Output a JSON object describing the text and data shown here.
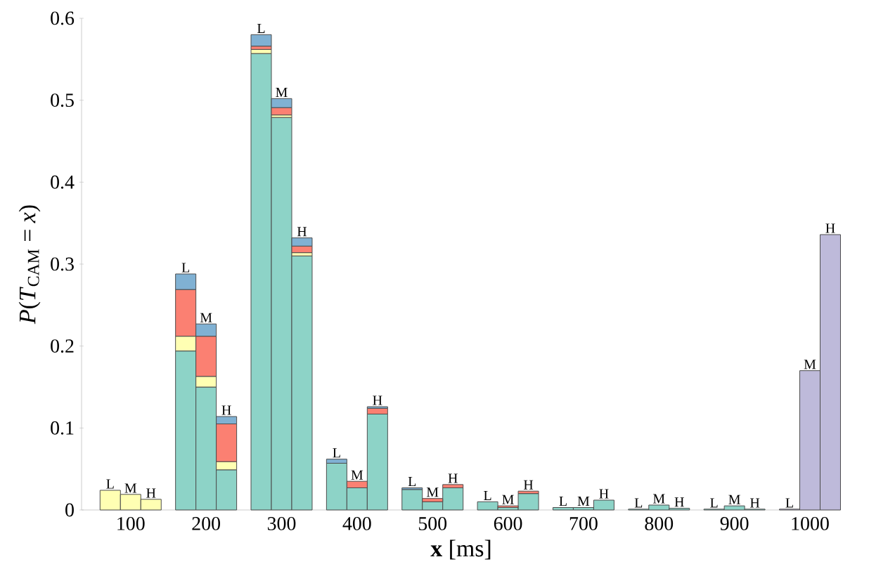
{
  "chart_data": {
    "type": "bar",
    "stacked": true,
    "xlabel": "**x** [ms]",
    "ylabel": "*P*(*T*$_{CAM}$ = *x*)",
    "x": [
      73,
      100,
      127,
      173,
      200,
      227,
      273,
      300,
      327,
      373,
      400,
      427,
      473,
      500,
      527,
      573,
      600,
      627,
      673,
      700,
      727,
      773,
      800,
      827,
      873,
      900,
      927,
      973,
      1000,
      1027
    ],
    "xlim": [
      35,
      1041
    ],
    "xticks": [
      100,
      200,
      300,
      400,
      500,
      600,
      700,
      800,
      900,
      1000
    ],
    "ylim": [
      0,
      0.6
    ],
    "yticks": [
      0,
      0.1,
      0.2,
      0.3,
      0.4,
      0.5,
      0.6
    ],
    "series": [
      {
        "color": "#8dd3c7",
        "values": [
          null,
          null,
          null,
          0.194,
          0.15,
          0.049,
          0.557,
          0.479,
          0.31,
          0.057,
          0.027,
          0.117,
          0.025,
          0.01,
          0.027,
          0.01,
          0.003,
          0.02,
          0.003,
          0.003,
          0.012,
          0.001,
          0.006,
          0.002,
          0.001,
          0.005,
          0.001,
          null,
          null,
          null
        ]
      },
      {
        "color": "#ffffb3",
        "values": [
          0.024,
          0.019,
          0.013,
          0.018,
          0.013,
          0.01,
          0.005,
          0.003,
          0.004,
          null,
          null,
          null,
          null,
          null,
          null,
          null,
          null,
          null,
          null,
          null,
          null,
          null,
          null,
          null,
          null,
          null,
          null,
          null,
          null,
          null
        ]
      },
      {
        "color": "#fb8072",
        "values": [
          null,
          null,
          null,
          0.057,
          0.049,
          0.046,
          0.004,
          0.009,
          0.008,
          null,
          0.008,
          0.007,
          null,
          0.004,
          0.004,
          null,
          0.002,
          0.003,
          null,
          null,
          null,
          null,
          null,
          null,
          null,
          null,
          null,
          null,
          null,
          null
        ]
      },
      {
        "color": "#80b1d3",
        "values": [
          null,
          null,
          null,
          0.019,
          0.015,
          0.009,
          0.014,
          0.011,
          0.01,
          0.005,
          null,
          0.002,
          0.002,
          null,
          null,
          null,
          null,
          null,
          null,
          null,
          null,
          null,
          null,
          null,
          null,
          null,
          null,
          null,
          null,
          null
        ]
      },
      {
        "color": "#bebada",
        "values": [
          null,
          null,
          null,
          null,
          null,
          null,
          null,
          null,
          null,
          null,
          null,
          null,
          null,
          null,
          null,
          null,
          null,
          null,
          null,
          null,
          null,
          null,
          null,
          null,
          null,
          null,
          null,
          0.001,
          0.17,
          0.336
        ]
      }
    ],
    "annotations": [
      {
        "text": "L",
        "x": 73,
        "y": 0.024
      },
      {
        "text": "M",
        "x": 100,
        "y": 0.019
      },
      {
        "text": "H",
        "x": 127,
        "y": 0.013
      },
      {
        "text": "L",
        "x": 173,
        "y": 0.288
      },
      {
        "text": "M",
        "x": 200,
        "y": 0.227
      },
      {
        "text": "H",
        "x": 227,
        "y": 0.114
      },
      {
        "text": "L",
        "x": 273,
        "y": 0.58
      },
      {
        "text": "M",
        "x": 300,
        "y": 0.502
      },
      {
        "text": "H",
        "x": 327,
        "y": 0.332
      },
      {
        "text": "L",
        "x": 373,
        "y": 0.062
      },
      {
        "text": "M",
        "x": 400,
        "y": 0.035
      },
      {
        "text": "H",
        "x": 427,
        "y": 0.126
      },
      {
        "text": "L",
        "x": 473,
        "y": 0.027
      },
      {
        "text": "M",
        "x": 500,
        "y": 0.014
      },
      {
        "text": "H",
        "x": 527,
        "y": 0.031
      },
      {
        "text": "L",
        "x": 573,
        "y": 0.01
      },
      {
        "text": "M",
        "x": 600,
        "y": 0.005
      },
      {
        "text": "H",
        "x": 627,
        "y": 0.023
      },
      {
        "text": "L",
        "x": 673,
        "y": 0.003
      },
      {
        "text": "M",
        "x": 700,
        "y": 0.003
      },
      {
        "text": "H",
        "x": 727,
        "y": 0.012
      },
      {
        "text": "L",
        "x": 773,
        "y": 0.001
      },
      {
        "text": "M",
        "x": 800,
        "y": 0.006
      },
      {
        "text": "H",
        "x": 827,
        "y": 0.002
      },
      {
        "text": "L",
        "x": 873,
        "y": 0.001
      },
      {
        "text": "M",
        "x": 900,
        "y": 0.005
      },
      {
        "text": "H",
        "x": 927,
        "y": 0.001
      },
      {
        "text": "L",
        "x": 973,
        "y": 0.001
      },
      {
        "text": "M",
        "x": 1000,
        "y": 0.17
      },
      {
        "text": "H",
        "x": 1027,
        "y": 0.336
      }
    ]
  }
}
